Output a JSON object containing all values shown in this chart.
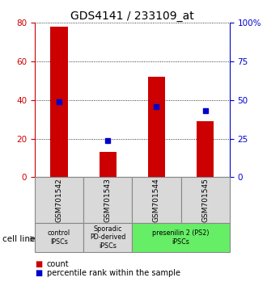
{
  "title": "GDS4141 / 233109_at",
  "samples": [
    "GSM701542",
    "GSM701543",
    "GSM701544",
    "GSM701545"
  ],
  "counts": [
    78,
    13,
    52,
    29
  ],
  "percentiles": [
    49,
    24,
    46,
    43
  ],
  "bar_color": "#cc0000",
  "marker_color": "#0000cc",
  "left_ylim": [
    0,
    80
  ],
  "left_yticks": [
    0,
    20,
    40,
    60,
    80
  ],
  "right_ylim": [
    0,
    100
  ],
  "right_yticks": [
    0,
    25,
    50,
    75,
    100
  ],
  "right_yticklabels": [
    "0",
    "25",
    "50",
    "75",
    "100%"
  ],
  "group_configs": [
    {
      "indices": [
        0
      ],
      "label": "control\nIPSCs",
      "color": "#d9d9d9"
    },
    {
      "indices": [
        1
      ],
      "label": "Sporadic\nPD-derived\niPSCs",
      "color": "#d9d9d9"
    },
    {
      "indices": [
        2,
        3
      ],
      "label": "presenilin 2 (PS2)\niPSCs",
      "color": "#66ee66"
    }
  ],
  "cell_line_label": "cell line",
  "legend_count_label": "count",
  "legend_percentile_label": "percentile rank within the sample",
  "title_fontsize": 10,
  "tick_fontsize": 7.5,
  "bar_width": 0.35
}
